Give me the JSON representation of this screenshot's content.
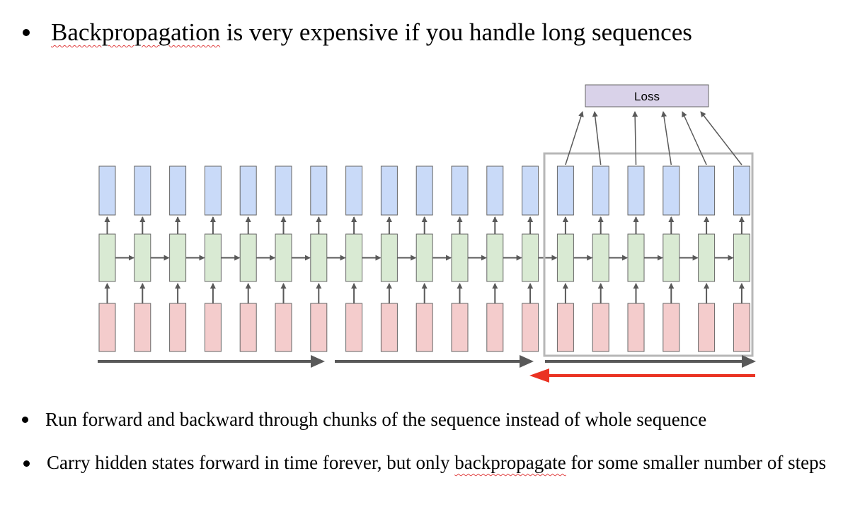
{
  "bullets": [
    {
      "pre": "",
      "underlined": "Backpropagation",
      "post": " is very expensive if you handle long sequences"
    },
    {
      "pre": "Run forward and backward through chunks of the sequence instead of whole sequence",
      "underlined": "",
      "post": ""
    },
    {
      "pre": "Carry hidden states forward in time forever, but only ",
      "underlined": "backpropagate",
      "post": " for some smaller number of steps"
    }
  ],
  "diagram": {
    "loss_label": "Loss",
    "num_timesteps": 19,
    "chunk_size": 6,
    "chunks": 3,
    "colors": {
      "output": "#c9daf8",
      "hidden": "#d9ead3",
      "input": "#f4cccc",
      "loss": "#d9d2e9",
      "border": "#666666",
      "arrow": "#595959",
      "window": "#b7b7b7",
      "backward_arrow": "#ea3323"
    }
  }
}
